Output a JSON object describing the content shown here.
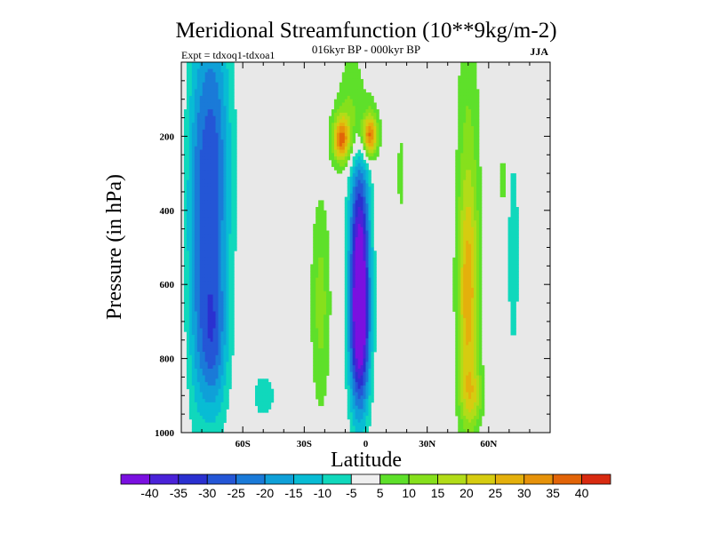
{
  "chart_data": {
    "type": "heatmap",
    "title": "Meridional Streamfunction (10**9kg/m-2)",
    "subtitle": "016kyr BP - 000kyr BP",
    "experiment_label": "Expt = tdxoq1-tdxoa1",
    "season_label": "JJA",
    "xlabel": "Latitude",
    "ylabel": "Pressure (in hPa)",
    "xlim": [
      -90,
      90
    ],
    "ylim": [
      1000,
      0
    ],
    "x_ticks": [
      {
        "value": -60,
        "label": "60S"
      },
      {
        "value": -30,
        "label": "30S"
      },
      {
        "value": 0,
        "label": "0"
      },
      {
        "value": 30,
        "label": "30N"
      },
      {
        "value": 60,
        "label": "60N"
      }
    ],
    "y_ticks": [
      {
        "value": 200,
        "label": "200"
      },
      {
        "value": 400,
        "label": "400"
      },
      {
        "value": 600,
        "label": "600"
      },
      {
        "value": 800,
        "label": "800"
      },
      {
        "value": 1000,
        "label": "1000"
      }
    ],
    "contour_levels": [
      -40,
      -35,
      -30,
      -25,
      -20,
      -15,
      -10,
      -5,
      5,
      10,
      15,
      20,
      25,
      30,
      35,
      40
    ],
    "colorbar_labels": [
      "-40",
      "-35",
      "-30",
      "-25",
      "-20",
      "-15",
      "-10",
      "-5",
      "5",
      "10",
      "15",
      "20",
      "25",
      "30",
      "35",
      "40"
    ],
    "colorbar_colors": [
      "#7a10e0",
      "#4a22d8",
      "#2a30d0",
      "#2456d6",
      "#1a7ad8",
      "#0fa0d8",
      "#08bcd4",
      "#10d8bc",
      "#efefef",
      "#5ee02a",
      "#86e01c",
      "#b2dc18",
      "#d6cc10",
      "#e4b00c",
      "#e6920a",
      "#e26408",
      "#d82a10"
    ],
    "background_color": "#e8e8e8",
    "features": [
      {
        "name": "southern-polar-cell",
        "lat": -75,
        "p": 300,
        "lat_width": 9,
        "p_width": 480,
        "value": -28
      },
      {
        "name": "southern-polar-cell-lower",
        "lat": -75,
        "p": 760,
        "lat_width": 7,
        "p_width": 200,
        "value": -18
      },
      {
        "name": "southern-polar-fringe",
        "lat": -83,
        "p": 500,
        "lat_width": 5,
        "p_width": 500,
        "value": -10
      },
      {
        "name": "southern-midlat-neg",
        "lat": -50,
        "p": 900,
        "lat_width": 6,
        "p_width": 60,
        "value": -9
      },
      {
        "name": "southern-midlat-pos",
        "lat": -22,
        "p": 650,
        "lat_width": 5,
        "p_width": 300,
        "value": 12
      },
      {
        "name": "equatorial-neg-cell",
        "lat": -3,
        "p": 500,
        "lat_width": 5,
        "p_width": 300,
        "value": -38
      },
      {
        "name": "equatorial-neg-cell-lower",
        "lat": -3,
        "p": 750,
        "lat_width": 5,
        "p_width": 220,
        "value": -32
      },
      {
        "name": "upper-pos-left",
        "lat": -12,
        "p": 210,
        "lat_width": 4,
        "p_width": 60,
        "value": 30
      },
      {
        "name": "upper-pos-right",
        "lat": 2,
        "p": 200,
        "lat_width": 3.5,
        "p_width": 55,
        "value": 32
      },
      {
        "name": "upper-pos-envelope",
        "lat": -5,
        "p": 180,
        "lat_width": 10,
        "p_width": 100,
        "value": 12
      },
      {
        "name": "upper-pos-column",
        "lat": -5,
        "p": 60,
        "lat_width": 8,
        "p_width": 160,
        "value": 8
      },
      {
        "name": "northern-pos-cell",
        "lat": 50,
        "p": 650,
        "lat_width": 5,
        "p_width": 300,
        "value": 22
      },
      {
        "name": "northern-pos-column",
        "lat": 50,
        "p": 300,
        "lat_width": 6,
        "p_width": 600,
        "value": 10
      },
      {
        "name": "northern-pos-lower",
        "lat": 52,
        "p": 900,
        "lat_width": 6,
        "p_width": 80,
        "value": 12
      },
      {
        "name": "northern-subpolar-neg",
        "lat": 72,
        "p": 520,
        "lat_width": 3,
        "p_width": 300,
        "value": -9
      },
      {
        "name": "northern-subpolar-pos",
        "lat": 67,
        "p": 320,
        "lat_width": 2,
        "p_width": 120,
        "value": 7
      },
      {
        "name": "tropical-pos-sliver",
        "lat": 17,
        "p": 300,
        "lat_width": 2,
        "p_width": 150,
        "value": 7
      }
    ]
  }
}
